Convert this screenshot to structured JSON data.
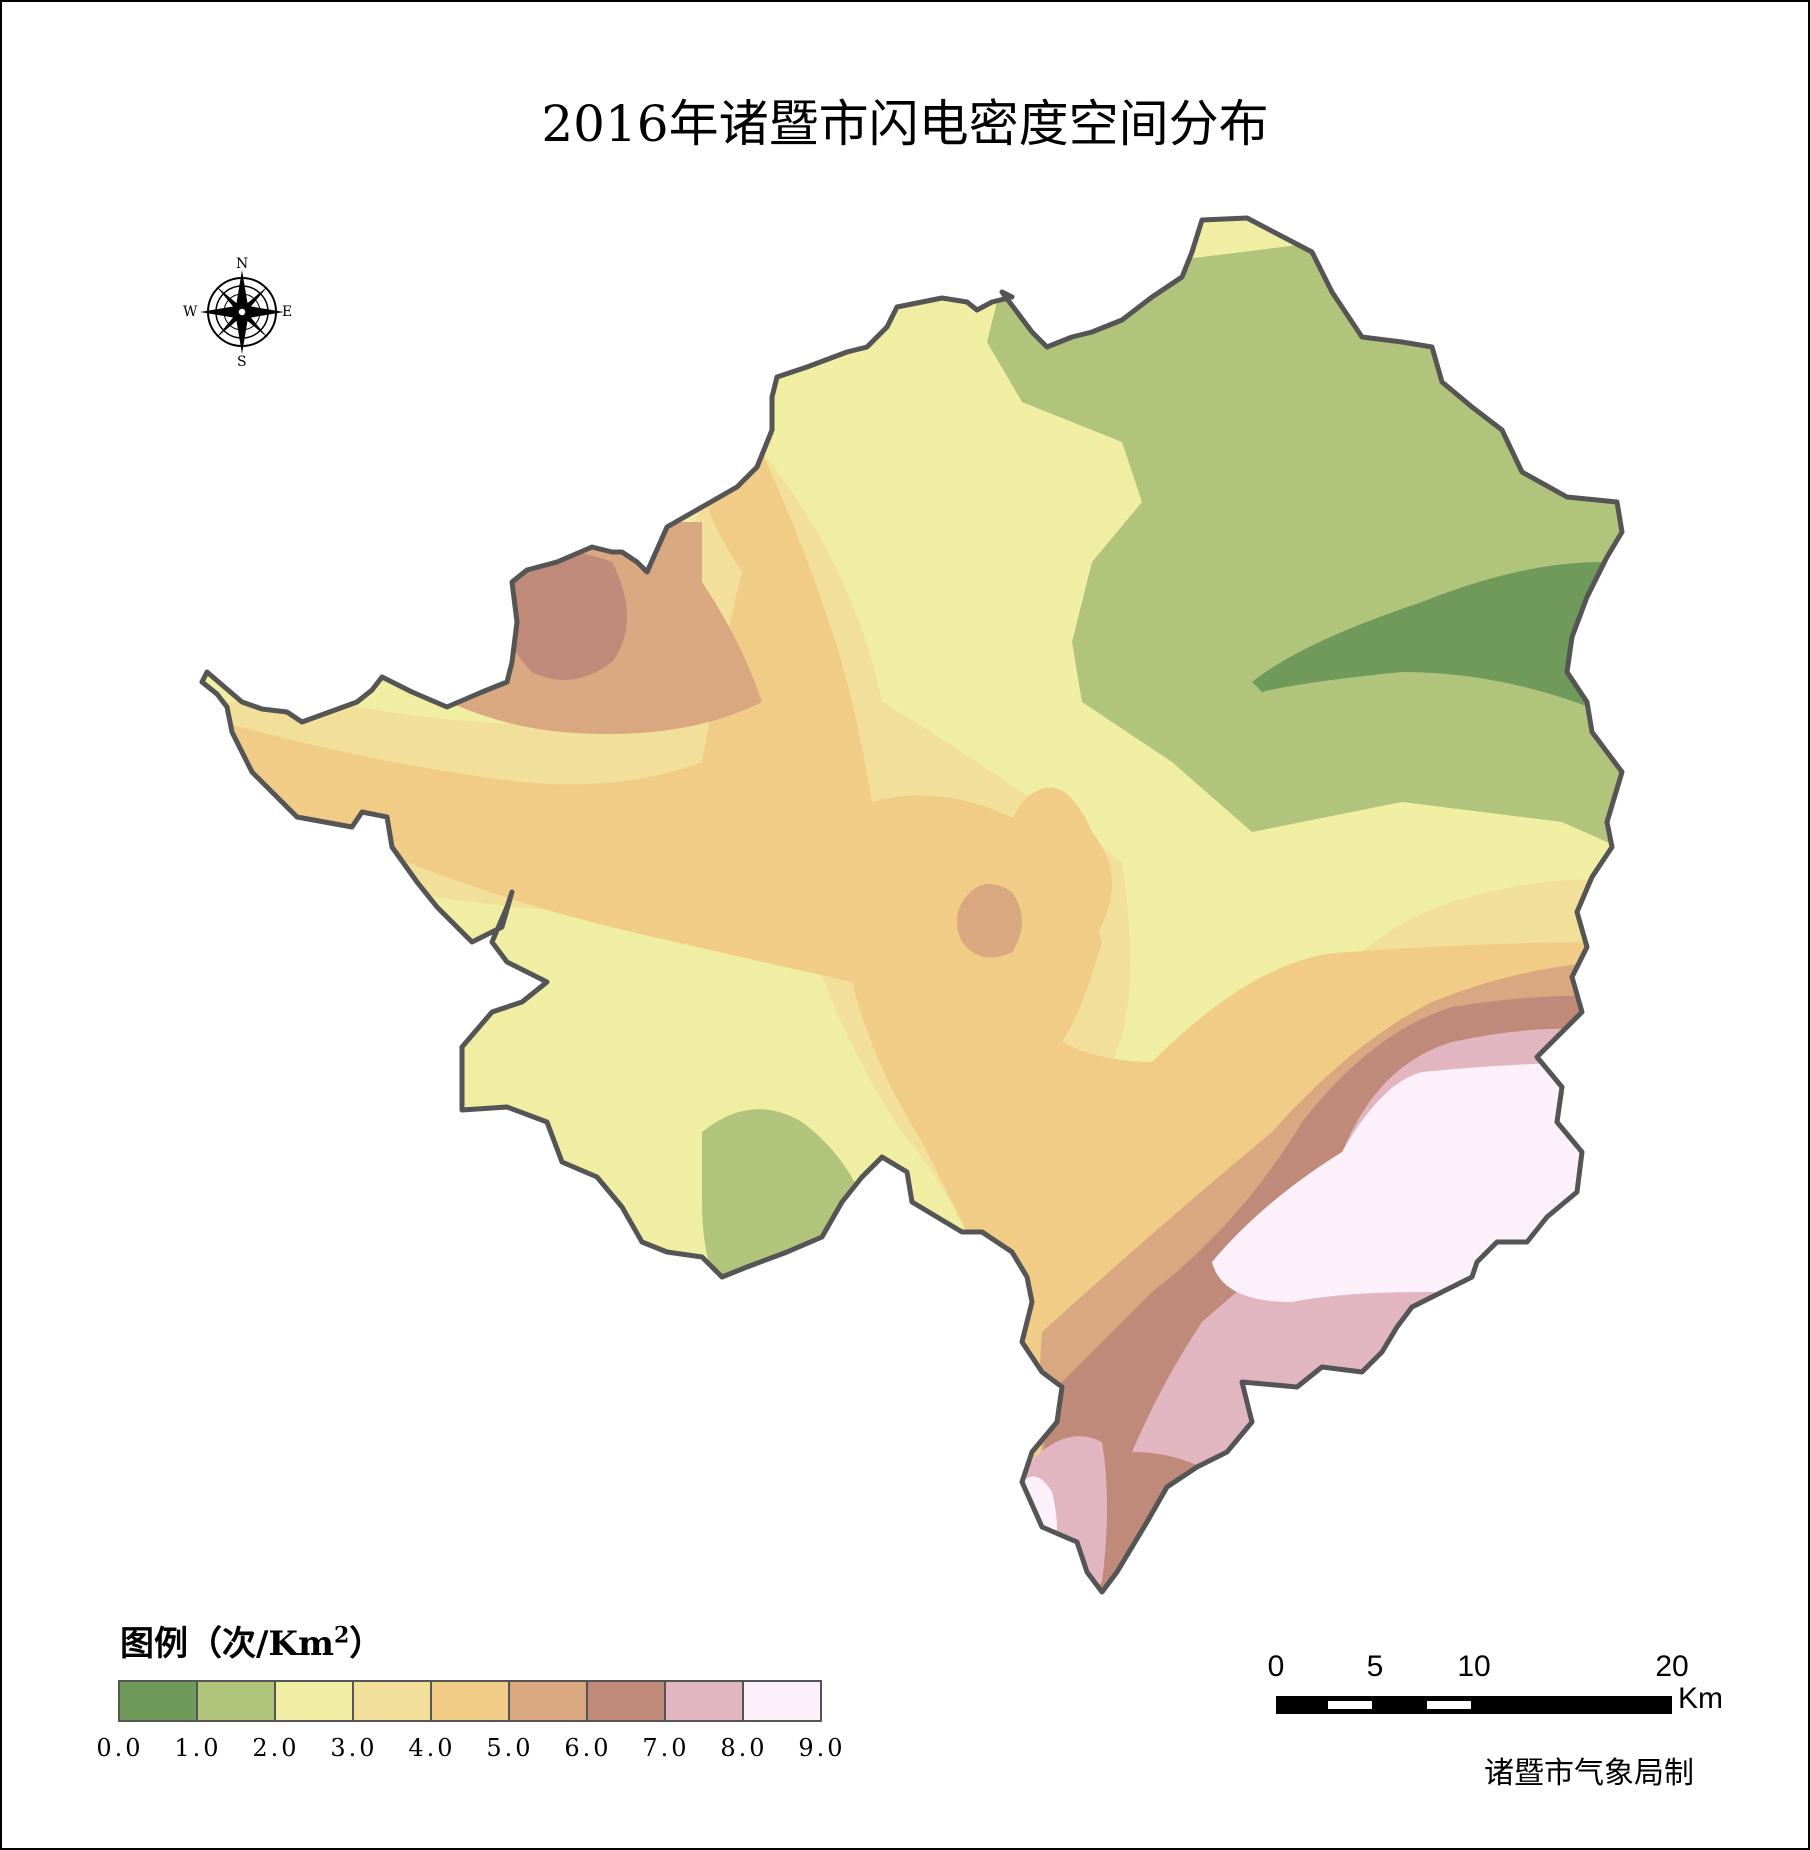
{
  "map": {
    "title": "2016年诸暨市闪电密度空间分布",
    "credit": "诸暨市气象局制"
  },
  "compass": {
    "n": "N",
    "s": "S",
    "e": "E",
    "w": "W"
  },
  "legend": {
    "title_text": "图例（次/Km",
    "title_sup": "2",
    "title_close": "）",
    "classes": [
      {
        "from": "0.0",
        "to": "1.0",
        "color": "#6f9a5a"
      },
      {
        "from": "1.0",
        "to": "2.0",
        "color": "#b0c47c"
      },
      {
        "from": "2.0",
        "to": "3.0",
        "color": "#f0eea2"
      },
      {
        "from": "3.0",
        "to": "4.0",
        "color": "#f2e09a"
      },
      {
        "from": "4.0",
        "to": "5.0",
        "color": "#f0cc86"
      },
      {
        "from": "5.0",
        "to": "6.0",
        "color": "#d9a880"
      },
      {
        "from": "6.0",
        "to": "7.0",
        "color": "#c08a7a"
      },
      {
        "from": "7.0",
        "to": "8.0",
        "color": "#e2b6c0"
      },
      {
        "from": "8.0",
        "to": "9.0",
        "color": "#fcf0fa"
      }
    ],
    "ticks": [
      "0.0",
      "1.0",
      "2.0",
      "3.0",
      "4.0",
      "5.0",
      "6.0",
      "7.0",
      "8.0",
      "9.0"
    ]
  },
  "scale_bar": {
    "labels": [
      "0",
      "5",
      "10",
      "20"
    ],
    "distances_km": [
      0,
      5,
      10,
      20
    ],
    "unit": "Km"
  }
}
